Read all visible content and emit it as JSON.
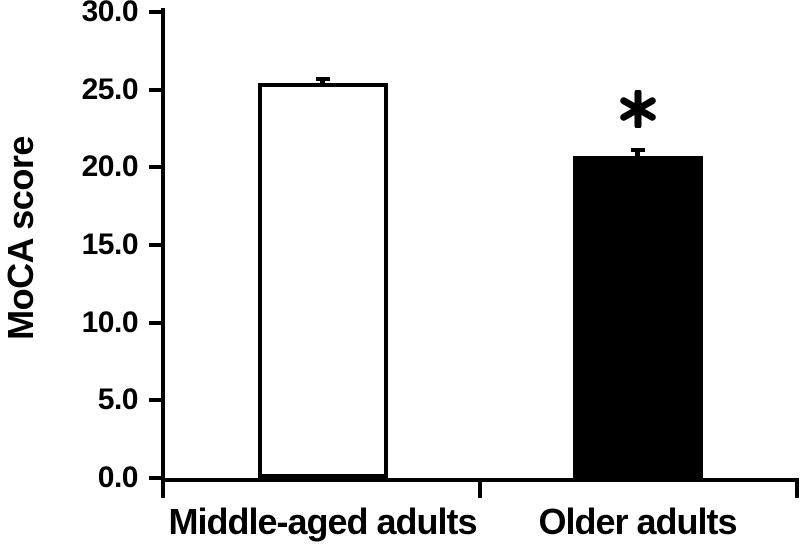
{
  "chart_data": {
    "type": "bar",
    "title": "",
    "xlabel": "",
    "ylabel": "MoCA score",
    "categories": [
      "Middle-aged adults",
      "Older adults"
    ],
    "values": [
      25.4,
      20.7
    ],
    "errors_upper": [
      0.3,
      0.4
    ],
    "bar_fills": [
      "#ffffff",
      "#000000"
    ],
    "bar_border_color": "#000000",
    "axis_color": "#000000",
    "background_color": "#ffffff",
    "ylim": [
      0,
      30
    ],
    "ytick_interval": 5,
    "ytick_labels": [
      "0.0",
      "5.0",
      "10.0",
      "15.0",
      "20.0",
      "25.0",
      "30.0"
    ],
    "grid": false,
    "legend": "none",
    "annotations": [
      {
        "category_index": 1,
        "symbol": "*"
      }
    ]
  }
}
